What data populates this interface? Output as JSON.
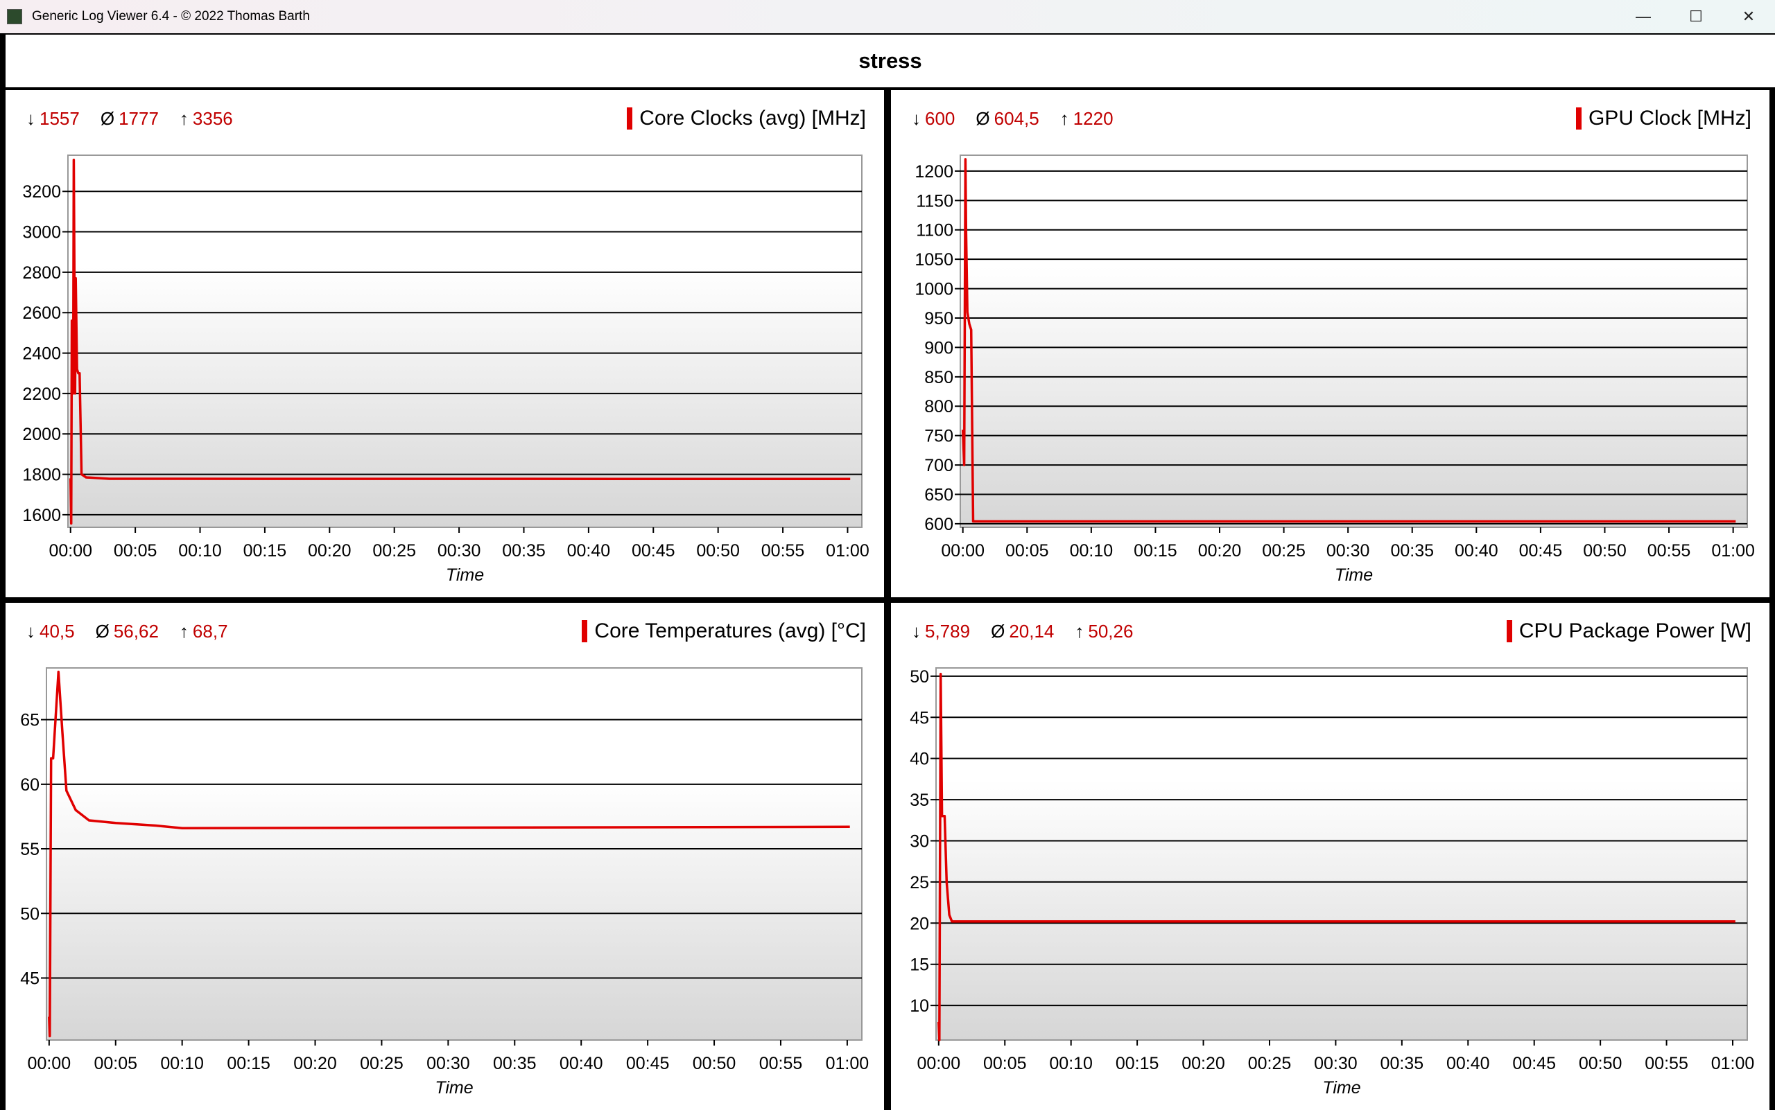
{
  "window": {
    "title": "Generic Log Viewer 6.4 - © 2022 Thomas Barth",
    "minimize": "—",
    "maximize": "☐",
    "close": "✕"
  },
  "header": {
    "title": "stress"
  },
  "stat_symbols": {
    "min": "↓",
    "avg": "Ø",
    "max": "↑"
  },
  "chart_data": [
    {
      "type": "line",
      "title": "Core Clocks (avg) [MHz]",
      "stats": {
        "min": "1557",
        "avg": "1777",
        "max": "3356"
      },
      "xlabel": "Time",
      "ylabel": "",
      "xticks": [
        "00:00",
        "00:05",
        "00:10",
        "00:15",
        "00:20",
        "00:25",
        "00:30",
        "00:35",
        "00:40",
        "00:45",
        "00:50",
        "00:55",
        "01:00"
      ],
      "xlim": [
        -0.2,
        61.1
      ],
      "ylim": [
        1538,
        3379
      ],
      "yticks": [
        1600,
        1800,
        2000,
        2200,
        2400,
        2600,
        2800,
        3000,
        3200
      ],
      "grid": true,
      "color": "#e00000",
      "x": [
        0,
        0.05,
        0.1,
        0.2,
        0.25,
        0.35,
        0.4,
        0.5,
        0.6,
        0.7,
        0.85,
        1.2,
        3,
        60.2
      ],
      "y": [
        1780,
        1557,
        2560,
        2200,
        3356,
        2200,
        2770,
        2320,
        2300,
        2300,
        1800,
        1785,
        1778,
        1777
      ]
    },
    {
      "type": "line",
      "title": "GPU Clock [MHz]",
      "stats": {
        "min": "600",
        "avg": "604,5",
        "max": "1220"
      },
      "xlabel": "Time",
      "ylabel": "",
      "xticks": [
        "00:00",
        "00:05",
        "00:10",
        "00:15",
        "00:20",
        "00:25",
        "00:30",
        "00:35",
        "00:40",
        "00:45",
        "00:50",
        "00:55",
        "01:00"
      ],
      "xlim": [
        -0.2,
        61.1
      ],
      "ylim": [
        594,
        1227
      ],
      "yticks": [
        600,
        650,
        700,
        750,
        800,
        850,
        900,
        950,
        1000,
        1050,
        1100,
        1150,
        1200
      ],
      "grid": true,
      "color": "#e00000",
      "x": [
        0,
        0.1,
        0.2,
        0.25,
        0.35,
        0.5,
        0.65,
        0.8,
        60.2
      ],
      "y": [
        760,
        700,
        1220,
        1100,
        960,
        940,
        930,
        604,
        604
      ]
    },
    {
      "type": "line",
      "title": "Core Temperatures (avg) [°C]",
      "stats": {
        "min": "40,5",
        "avg": "56,62",
        "max": "68,7"
      },
      "xlabel": "Time",
      "ylabel": "",
      "xticks": [
        "00:00",
        "00:05",
        "00:10",
        "00:15",
        "00:20",
        "00:25",
        "00:30",
        "00:35",
        "00:40",
        "00:45",
        "00:50",
        "00:55",
        "01:00"
      ],
      "xlim": [
        -0.2,
        61.1
      ],
      "ylim": [
        40.2,
        69.0
      ],
      "yticks": [
        45,
        50,
        55,
        60,
        65
      ],
      "grid": true,
      "color": "#e00000",
      "x": [
        0,
        0.05,
        0.15,
        0.3,
        0.7,
        1,
        1.3,
        2,
        3,
        5,
        8,
        10,
        60.2
      ],
      "y": [
        42,
        40.5,
        62,
        62,
        68.7,
        64,
        59.5,
        58,
        57.2,
        57,
        56.8,
        56.6,
        56.7
      ]
    },
    {
      "type": "line",
      "title": "CPU Package Power [W]",
      "stats": {
        "min": "5,789",
        "avg": "20,14",
        "max": "50,26"
      },
      "xlabel": "Time",
      "ylabel": "",
      "xticks": [
        "00:00",
        "00:05",
        "00:10",
        "00:15",
        "00:20",
        "00:25",
        "00:30",
        "00:35",
        "00:40",
        "00:45",
        "00:50",
        "00:55",
        "01:00"
      ],
      "xlim": [
        -0.2,
        61.1
      ],
      "ylim": [
        5.8,
        51.0
      ],
      "yticks": [
        10,
        15,
        20,
        25,
        30,
        35,
        40,
        45,
        50
      ],
      "grid": true,
      "color": "#e00000",
      "x": [
        0,
        0.05,
        0.15,
        0.25,
        0.45,
        0.6,
        0.8,
        1,
        60.2
      ],
      "y": [
        8,
        5.8,
        50.26,
        33,
        33,
        25,
        21,
        20.2,
        20.2
      ]
    }
  ]
}
